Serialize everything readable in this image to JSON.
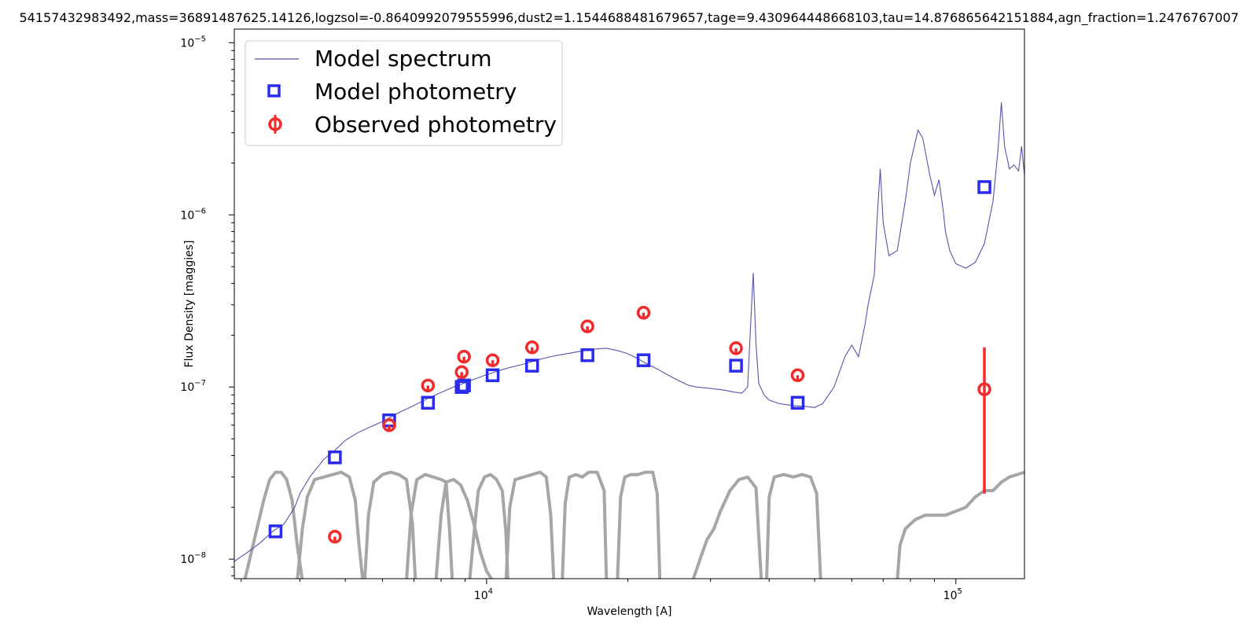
{
  "chart_data": {
    "type": "scatter",
    "title": "541574329834​92,mass=36891487625.14126,logzsol=-0.8640992079555996,dust2=1.1544688481679657,tage=9.430964448668103,tau=14.876865642151884,agn_fraction=1.2476767007",
    "xlabel": "Wavelength [A]",
    "ylabel": "Flux Density [maggies]",
    "xscale": "log",
    "yscale": "log",
    "xlim": [
      2900,
      140000
    ],
    "ylim": [
      7.7e-09,
      1.2e-05
    ],
    "x_ticks": [
      {
        "value": 10000,
        "base": "10",
        "exp": "4"
      },
      {
        "value": 100000,
        "base": "10",
        "exp": "5"
      }
    ],
    "y_ticks": [
      {
        "value": 1e-08,
        "base": "10",
        "exp": "−8"
      },
      {
        "value": 1e-07,
        "base": "10",
        "exp": "−7"
      },
      {
        "value": 1e-06,
        "base": "10",
        "exp": "−6"
      },
      {
        "value": 1e-05,
        "base": "10",
        "exp": "−5"
      }
    ],
    "legend": {
      "placement": "top-left",
      "entries": [
        "Model spectrum",
        "Model photometry",
        "Observed photometry"
      ]
    },
    "colors": {
      "spectrum": "#5555aa",
      "model": "#2b2bee",
      "observed": "#f02c2c",
      "filters": "#a6a6a6"
    },
    "series": [
      {
        "name": "Model spectrum",
        "kind": "line",
        "x": [
          2900,
          3100,
          3300,
          3500,
          3700,
          3900,
          4000,
          4200,
          4500,
          4800,
          5000,
          5300,
          5600,
          6000,
          6500,
          7000,
          7500,
          8000,
          8500,
          9000,
          9500,
          10000,
          11000,
          12000,
          13000,
          14000,
          15000,
          16000,
          17000,
          18000,
          19000,
          20000,
          21000,
          22000,
          23000,
          24000,
          25000,
          26000,
          27000,
          28000,
          30000,
          32000,
          34000,
          35000,
          36000,
          36500,
          37000,
          37500,
          38000,
          39000,
          40000,
          42000,
          45000,
          48000,
          50000,
          52000,
          55000,
          58000,
          60000,
          62000,
          64000,
          65000,
          67000,
          68000,
          69000,
          70000,
          72000,
          75000,
          78000,
          80000,
          83000,
          85000,
          88000,
          90000,
          92000,
          94000,
          95000,
          97000,
          100000,
          105000,
          110000,
          115000,
          120000,
          123000,
          125000,
          127000,
          130000,
          133000,
          136000,
          138000,
          140000
        ],
        "y": [
          9.7e-09,
          1.1e-08,
          1.25e-08,
          1.45e-08,
          1.6e-08,
          2e-08,
          2.4e-08,
          3e-08,
          3.8e-08,
          4.4e-08,
          4.9e-08,
          5.4e-08,
          5.8e-08,
          6.3e-08,
          7.1e-08,
          7.8e-08,
          8.6e-08,
          9.3e-08,
          1e-07,
          1.06e-07,
          1.12e-07,
          1.18e-07,
          1.28e-07,
          1.36e-07,
          1.45e-07,
          1.52e-07,
          1.57e-07,
          1.62e-07,
          1.66e-07,
          1.68e-07,
          1.63e-07,
          1.56e-07,
          1.46e-07,
          1.36e-07,
          1.28e-07,
          1.2e-07,
          1.13e-07,
          1.07e-07,
          1.02e-07,
          1e-07,
          9.8e-08,
          9.6e-08,
          9.3e-08,
          9.2e-08,
          1e-07,
          2.2e-07,
          4.6e-07,
          1.8e-07,
          1.05e-07,
          9e-08,
          8.4e-08,
          8e-08,
          7.8e-08,
          7.7e-08,
          7.6e-08,
          8e-08,
          1e-07,
          1.5e-07,
          1.75e-07,
          1.5e-07,
          2.3e-07,
          3e-07,
          4.5e-07,
          1e-06,
          1.85e-06,
          9e-07,
          5.8e-07,
          6.2e-07,
          1.2e-06,
          2e-06,
          3.1e-06,
          2.8e-06,
          1.7e-06,
          1.3e-06,
          1.6e-06,
          1.05e-06,
          8e-07,
          6.2e-07,
          5.2e-07,
          4.9e-07,
          5.3e-07,
          6.8e-07,
          1.2e-06,
          2.4e-06,
          4.5e-06,
          2.5e-06,
          1.85e-06,
          1.95e-06,
          1.8e-06,
          2.5e-06,
          1.7e-06
        ]
      },
      {
        "name": "Model photometry",
        "kind": "square",
        "x": [
          3550,
          4750,
          6200,
          7500,
          8850,
          8950,
          10300,
          12500,
          16400,
          21600,
          34000,
          46000,
          115000
        ],
        "y": [
          1.45e-08,
          3.9e-08,
          6.4e-08,
          8.1e-08,
          1e-07,
          1.02e-07,
          1.17e-07,
          1.33e-07,
          1.53e-07,
          1.43e-07,
          1.33e-07,
          8.1e-08,
          1.45e-06
        ]
      },
      {
        "name": "Observed photometry",
        "kind": "errorbar",
        "x": [
          4750,
          6200,
          7500,
          8850,
          8950,
          10300,
          12500,
          16400,
          21600,
          34000,
          46000,
          115000
        ],
        "y": [
          1.35e-08,
          6e-08,
          1.02e-07,
          1.22e-07,
          1.5e-07,
          1.43e-07,
          1.7e-07,
          2.25e-07,
          2.7e-07,
          1.68e-07,
          1.17e-07,
          9.7e-08
        ],
        "yerr_low": [
          0,
          0,
          0,
          0,
          0,
          0,
          0,
          0,
          0,
          0,
          0,
          7.3e-08
        ],
        "yerr_high": [
          0,
          0,
          0,
          0,
          0,
          0,
          0,
          0,
          0,
          0,
          0,
          7.3e-08
        ]
      }
    ],
    "filter_curves": [
      {
        "name": "u",
        "x": [
          3050,
          3200,
          3350,
          3450,
          3550,
          3650,
          3750,
          3850,
          3950,
          4050
        ],
        "y": [
          7.5e-09,
          1.3e-08,
          2.2e-08,
          2.9e-08,
          3.2e-08,
          3.2e-08,
          2.9e-08,
          2.2e-08,
          1.2e-08,
          7.5e-09
        ]
      },
      {
        "name": "g",
        "x": [
          3950,
          4050,
          4150,
          4300,
          4500,
          4700,
          4900,
          5100,
          5250,
          5350,
          5450
        ],
        "y": [
          7.5e-09,
          1.5e-08,
          2.3e-08,
          2.9e-08,
          3e-08,
          3.1e-08,
          3.2e-08,
          3e-08,
          2.2e-08,
          1.2e-08,
          7.5e-09
        ]
      },
      {
        "name": "r",
        "x": [
          5500,
          5600,
          5750,
          6000,
          6250,
          6500,
          6750,
          6950,
          7050
        ],
        "y": [
          7.5e-09,
          1.8e-08,
          2.8e-08,
          3.1e-08,
          3.2e-08,
          3.1e-08,
          2.9e-08,
          1.6e-08,
          7.5e-09
        ]
      },
      {
        "name": "i",
        "x": [
          6750,
          6900,
          7100,
          7400,
          7700,
          8000,
          8200,
          8350,
          8450
        ],
        "y": [
          7.5e-09,
          1.8e-08,
          2.9e-08,
          3.1e-08,
          3e-08,
          2.9e-08,
          2.8e-08,
          1.4e-08,
          7.5e-09
        ]
      },
      {
        "name": "z",
        "x": [
          7800,
          8000,
          8200,
          8500,
          8800,
          9100,
          9400,
          9700,
          10000,
          10300
        ],
        "y": [
          7.5e-09,
          1.8e-08,
          2.8e-08,
          2.9e-08,
          2.7e-08,
          2.2e-08,
          1.6e-08,
          1.1e-08,
          8.5e-09,
          7.5e-09
        ]
      },
      {
        "name": "Y",
        "x": [
          9200,
          9400,
          9600,
          9900,
          10200,
          10500,
          10800,
          11000,
          11100
        ],
        "y": [
          7.5e-09,
          1.4e-08,
          2.5e-08,
          3e-08,
          3.1e-08,
          2.9e-08,
          2.5e-08,
          1.4e-08,
          7.5e-09
        ]
      },
      {
        "name": "J",
        "x": [
          11000,
          11200,
          11500,
          12000,
          12500,
          13000,
          13400,
          13700,
          13900
        ],
        "y": [
          7.5e-09,
          2e-08,
          2.9e-08,
          3e-08,
          3.1e-08,
          3.2e-08,
          3e-08,
          1.8e-08,
          7.5e-09
        ]
      },
      {
        "name": "H",
        "x": [
          14500,
          14700,
          15000,
          15500,
          16000,
          16500,
          17200,
          17800,
          18000
        ],
        "y": [
          7.5e-09,
          2.1e-08,
          3e-08,
          3.1e-08,
          3e-08,
          3.2e-08,
          3.2e-08,
          2.5e-08,
          7.5e-09
        ]
      },
      {
        "name": "K",
        "x": [
          19000,
          19300,
          19700,
          20300,
          21000,
          21800,
          22600,
          23100,
          23400
        ],
        "y": [
          7.5e-09,
          2.3e-08,
          3e-08,
          3.1e-08,
          3.1e-08,
          3.2e-08,
          3.2e-08,
          2.4e-08,
          7.5e-09
        ]
      },
      {
        "name": "W1",
        "x": [
          27500,
          28500,
          29500,
          30500,
          31500,
          33000,
          34500,
          36000,
          37500,
          38500
        ],
        "y": [
          7.5e-09,
          1e-08,
          1.3e-08,
          1.5e-08,
          1.9e-08,
          2.5e-08,
          2.9e-08,
          3e-08,
          2.6e-08,
          7.5e-09
        ]
      },
      {
        "name": "W2",
        "x": [
          39500,
          40000,
          41000,
          43000,
          45000,
          47000,
          49000,
          50500,
          51500
        ],
        "y": [
          7.5e-09,
          2.3e-08,
          3e-08,
          3.1e-08,
          3e-08,
          3.1e-08,
          3e-08,
          2.4e-08,
          7.5e-09
        ]
      },
      {
        "name": "W3",
        "x": [
          75000,
          76000,
          78000,
          82000,
          86000,
          90000,
          95000,
          100000,
          105000,
          110000,
          115000,
          120000,
          125000,
          130000,
          135000,
          140000
        ],
        "y": [
          7.5e-09,
          1.2e-08,
          1.5e-08,
          1.7e-08,
          1.8e-08,
          1.8e-08,
          1.8e-08,
          1.9e-08,
          2e-08,
          2.3e-08,
          2.5e-08,
          2.5e-08,
          2.8e-08,
          3e-08,
          3.1e-08,
          3.2e-08
        ]
      }
    ]
  }
}
